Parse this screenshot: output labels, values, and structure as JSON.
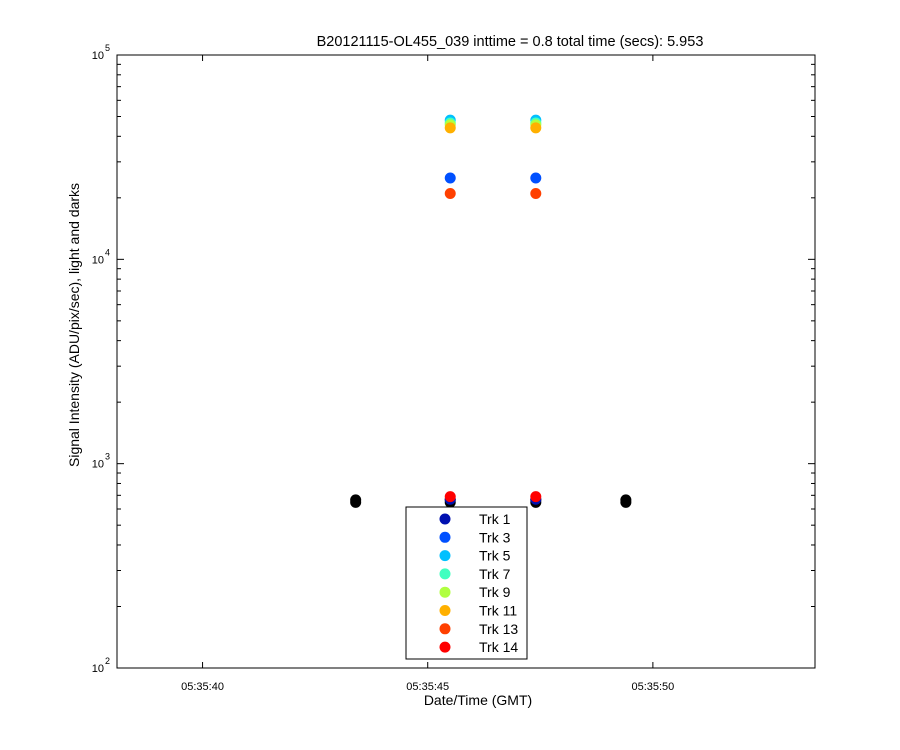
{
  "chart_data": {
    "type": "scatter",
    "title": "B20121115-OL455_039 inttime = 0.8 total time (secs): 5.953",
    "xlabel": "Date/Time (GMT)",
    "ylabel": "Signal Intensity (ADU/pix/sec), light and darks",
    "x_axis": {
      "type": "time",
      "range": [
        "05:35:38.1",
        "05:35:53.6"
      ],
      "ticks": [
        "05:35:40",
        "05:35:45",
        "05:35:50"
      ]
    },
    "y_axis": {
      "type": "log",
      "base": "10",
      "range": [
        100,
        100000
      ],
      "ticks": [
        {
          "value": 100,
          "base": "10",
          "exp": "2"
        },
        {
          "value": 1000,
          "base": "10",
          "exp": "3"
        },
        {
          "value": 10000,
          "base": "10",
          "exp": "4"
        },
        {
          "value": 100000,
          "base": "10",
          "exp": "5"
        }
      ]
    },
    "grid": false,
    "legend_position": "bottom-center",
    "series": [
      {
        "name": "Trk 1",
        "color": "#0010b0",
        "x": [
          "05:35:45.5",
          "05:35:47.4"
        ],
        "y": [
          670,
          670
        ]
      },
      {
        "name": "Trk 3",
        "color": "#0050ff",
        "x": [
          "05:35:45.5",
          "05:35:47.4"
        ],
        "y": [
          25000,
          25000
        ]
      },
      {
        "name": "Trk 5",
        "color": "#00c0ff",
        "x": [
          "05:35:45.5",
          "05:35:47.4"
        ],
        "y": [
          48000,
          48000
        ]
      },
      {
        "name": "Trk 7",
        "color": "#40ffc0",
        "x": [
          "05:35:45.5",
          "05:35:47.4"
        ],
        "y": [
          46500,
          46500
        ]
      },
      {
        "name": "Trk 9",
        "color": "#b0ff40",
        "x": [
          "05:35:45.5",
          "05:35:47.4"
        ],
        "y": [
          45500,
          45500
        ]
      },
      {
        "name": "Trk 11",
        "color": "#ffb000",
        "x": [
          "05:35:45.5",
          "05:35:47.4"
        ],
        "y": [
          44000,
          44000
        ]
      },
      {
        "name": "Trk 13",
        "color": "#ff4000",
        "x": [
          "05:35:45.5",
          "05:35:47.4"
        ],
        "y": [
          21000,
          21000
        ]
      },
      {
        "name": "Trk 14",
        "color": "#ff0000",
        "x": [
          "05:35:45.5",
          "05:35:47.4"
        ],
        "y": [
          690,
          690
        ]
      }
    ],
    "darks": {
      "color": "#000000",
      "x": [
        "05:35:43.4",
        "05:35:45.5",
        "05:35:47.4",
        "05:35:49.4"
      ],
      "y": [
        665,
        665,
        665,
        665
      ]
    }
  }
}
